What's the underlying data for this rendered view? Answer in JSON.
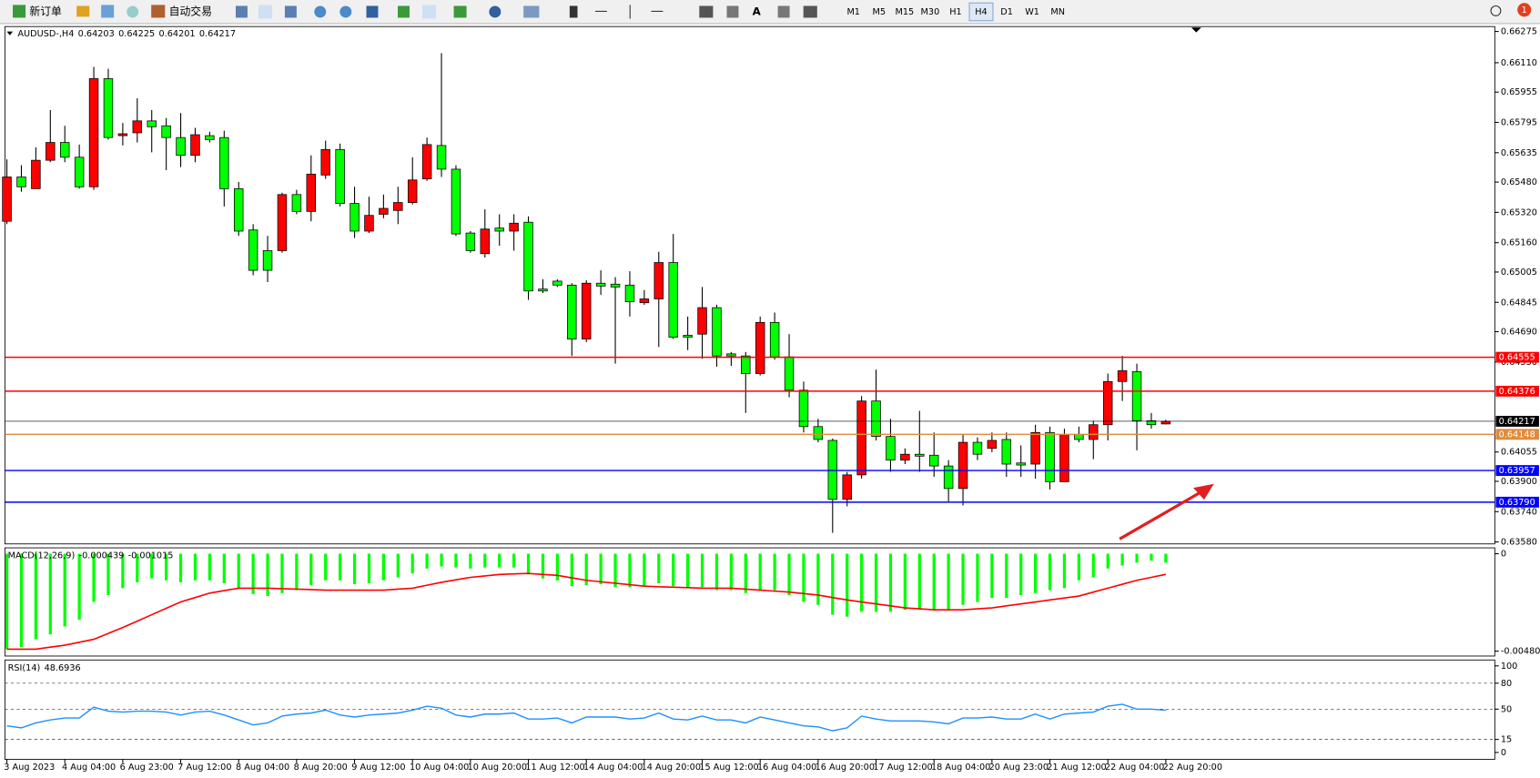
{
  "toolbar": {
    "new_order": "新订单",
    "auto_trading": "自动交易",
    "timeframes": [
      "M1",
      "M5",
      "M15",
      "M30",
      "H1",
      "H4",
      "D1",
      "W1",
      "MN"
    ],
    "active_timeframe": "H4",
    "badge": "1"
  },
  "chart_data": [
    {
      "type": "candlestick",
      "title": "AUDUSD-,H4",
      "up_color": "#ff0000",
      "down_color": "#00ff00",
      "categories": [
        "3 Aug 2023",
        null,
        null,
        null,
        "4 Aug 04:00",
        null,
        null,
        null,
        "6 Aug 23:00",
        null,
        null,
        null,
        "7 Aug 12:00",
        null,
        null,
        null,
        "8 Aug 04:00",
        null,
        null,
        null,
        "8 Aug 20:00",
        null,
        null,
        null,
        "9 Aug 12:00",
        null,
        null,
        null,
        "10 Aug 04:00",
        null,
        null,
        null,
        "10 Aug 20:00",
        null,
        null,
        null,
        "11 Aug 12:00",
        null,
        null,
        null,
        "14 Aug 04:00",
        null,
        null,
        null,
        "14 Aug 20:00",
        null,
        null,
        null,
        "15 Aug 12:00",
        null,
        null,
        null,
        "16 Aug 04:00",
        null,
        null,
        null,
        "16 Aug 20:00",
        null,
        null,
        null,
        "17 Aug 12:00",
        null,
        null,
        null,
        "18 Aug 04:00",
        null,
        null,
        null,
        "20 Aug 23:00",
        null,
        null,
        null,
        "21 Aug 12:00",
        null,
        null,
        null,
        "22 Aug 04:00",
        null,
        null,
        null,
        "22 Aug 20:00"
      ],
      "open": [
        0.65273,
        0.65507,
        0.65445,
        0.65595,
        0.65689,
        0.65611,
        0.65455,
        0.66026,
        0.65725,
        0.6574,
        0.65803,
        0.65777,
        0.65715,
        0.65621,
        0.65725,
        0.65715,
        0.65445,
        0.65227,
        0.65118,
        0.65118,
        0.65414,
        0.65325,
        0.65517,
        0.65652,
        0.65367,
        0.65221,
        0.6531,
        0.6533,
        0.65372,
        0.65497,
        0.65673,
        0.65548,
        0.65211,
        0.65102,
        0.65237,
        0.65221,
        0.65268,
        0.64915,
        0.64957,
        0.64936,
        0.64651,
        0.64946,
        0.64941,
        0.64936,
        0.64843,
        0.64863,
        0.65055,
        0.64671,
        0.64677,
        0.64817,
        0.64573,
        0.64562,
        0.64469,
        0.64739,
        0.64557,
        0.64381,
        0.64189,
        0.64116,
        0.63805,
        0.63934,
        0.64324,
        0.64137,
        0.64012,
        0.64043,
        0.64038,
        0.63981,
        0.63862,
        0.64106,
        0.64074,
        0.64121,
        0.63997,
        0.63991,
        0.64158,
        0.63898,
        0.64147,
        0.64121,
        0.64199,
        0.64427,
        0.64479,
        0.6422,
        0.64203
      ],
      "high": [
        0.656,
        0.65569,
        0.65663,
        0.6586,
        0.65777,
        0.65678,
        0.66088,
        0.66078,
        0.65792,
        0.65922,
        0.6586,
        0.65818,
        0.65844,
        0.65766,
        0.65746,
        0.65751,
        0.65481,
        0.65258,
        0.65196,
        0.65424,
        0.65439,
        0.65621,
        0.65699,
        0.65683,
        0.65455,
        0.65403,
        0.65414,
        0.65455,
        0.65611,
        0.65715,
        0.66161,
        0.65569,
        0.65221,
        0.65336,
        0.6531,
        0.6531,
        0.65299,
        0.64967,
        0.64967,
        0.64946,
        0.64962,
        0.65014,
        0.64978,
        0.65009,
        0.6491,
        0.65112,
        0.65206,
        0.6477,
        0.64926,
        0.64832,
        0.64583,
        0.64583,
        0.6477,
        0.64791,
        0.64677,
        0.64427,
        0.6423,
        0.64126,
        0.6395,
        0.6435,
        0.6449,
        0.6423,
        0.64074,
        0.64272,
        0.64158,
        0.64012,
        0.64147,
        0.64132,
        0.64158,
        0.64158,
        0.6409,
        0.64199,
        0.64189,
        0.64178,
        0.64189,
        0.6422,
        0.64469,
        0.64562,
        0.64521,
        0.64261,
        0.64225
      ],
      "low": [
        0.65258,
        0.65429,
        0.65445,
        0.65585,
        0.65585,
        0.65445,
        0.65439,
        0.65704,
        0.65673,
        0.65689,
        0.65637,
        0.65543,
        0.65559,
        0.65585,
        0.65689,
        0.65351,
        0.65196,
        0.64988,
        0.64952,
        0.65107,
        0.6531,
        0.65273,
        0.65497,
        0.65351,
        0.65185,
        0.65211,
        0.65289,
        0.65258,
        0.65362,
        0.65486,
        0.65507,
        0.65196,
        0.65107,
        0.65081,
        0.65144,
        0.65118,
        0.64858,
        0.64894,
        0.64926,
        0.64562,
        0.64635,
        0.64884,
        0.64521,
        0.6477,
        0.64832,
        0.64609,
        0.64651,
        0.64593,
        0.64547,
        0.64505,
        0.6451,
        0.64261,
        0.64459,
        0.64542,
        0.64344,
        0.64158,
        0.64106,
        0.63628,
        0.63768,
        0.63914,
        0.64116,
        0.6395,
        0.63991,
        0.6395,
        0.63924,
        0.63794,
        0.63773,
        0.64012,
        0.64054,
        0.63924,
        0.63924,
        0.63914,
        0.63857,
        0.63898,
        0.64106,
        0.64017,
        0.64116,
        0.64324,
        0.64064,
        0.64178,
        0.64201
      ],
      "close": [
        0.65507,
        0.65455,
        0.65595,
        0.65689,
        0.65611,
        0.65455,
        0.66026,
        0.65715,
        0.65735,
        0.65803,
        0.65772,
        0.65715,
        0.65621,
        0.6573,
        0.65704,
        0.65445,
        0.65221,
        0.65014,
        0.65014,
        0.65414,
        0.65325,
        0.65522,
        0.65652,
        0.65367,
        0.65221,
        0.65304,
        0.65341,
        0.65372,
        0.65491,
        0.65678,
        0.65548,
        0.65206,
        0.65118,
        0.65232,
        0.65221,
        0.65263,
        0.64905,
        0.64905,
        0.64936,
        0.64651,
        0.64946,
        0.64931,
        0.64926,
        0.64848,
        0.64863,
        0.65055,
        0.64661,
        0.64661,
        0.64817,
        0.64562,
        0.64562,
        0.64469,
        0.64739,
        0.64557,
        0.64381,
        0.64189,
        0.64121,
        0.63805,
        0.63934,
        0.64324,
        0.64137,
        0.64012,
        0.64043,
        0.64033,
        0.63981,
        0.63862,
        0.64106,
        0.64043,
        0.64116,
        0.63991,
        0.63986,
        0.64158,
        0.63898,
        0.64147,
        0.64121,
        0.64199,
        0.64427,
        0.64484,
        0.6422,
        0.64199,
        0.64217
      ],
      "ylim": [
        0.6358,
        0.66275
      ],
      "yticks": [
        0.66275,
        {
          "value": 0.6611,
          "label": "0.66110"
        },
        0.65955,
        0.65795,
        0.65635,
        {
          "value": 0.6548,
          "label": "0.65480"
        },
        {
          "value": 0.6532,
          "label": "0.65320"
        },
        {
          "value": 0.6516,
          "label": "0.65160"
        },
        0.65005,
        0.64845,
        {
          "value": 0.6469,
          "label": "0.64690"
        },
        {
          "value": 0.6453,
          "label": "0.64530"
        },
        0.64055,
        {
          "value": 0.639,
          "label": "0.63900"
        },
        {
          "value": 0.6374,
          "label": "0.63740"
        },
        {
          "value": 0.6358,
          "label": "0.63580"
        }
      ],
      "price_line_color": "#000000",
      "levels": {
        "values": [
          0.64555,
          0.64376,
          0.64148,
          0.63957,
          0.6379
        ],
        "value_labels": [
          "0.64555",
          "0.64376",
          "0.64148",
          "0.63957",
          "0.63790"
        ],
        "colors": [
          "#ff0000",
          "#ff0000",
          "#e08a3c",
          "#0000ff",
          "#0000ff"
        ]
      }
    },
    {
      "type": "macd",
      "title": "MACD(12,26,9)",
      "series": [
        {
          "color": "#00ff00",
          "values": [
            -0.004705,
            -0.004608,
            -0.00422,
            -0.003977,
            -0.003589,
            -0.00325,
            -0.002377,
            -0.002037,
            -0.001698,
            -0.001407,
            -0.001213,
            -0.00131,
            -0.001407,
            -0.00131,
            -0.00131,
            -0.001455,
            -0.001698,
            -0.001989,
            -0.002086,
            -0.00194,
            -0.001795,
            -0.001552,
            -0.00131,
            -0.00131,
            -0.001504,
            -0.001455,
            -0.00131,
            -0.001164,
            -0.00097,
            -0.000728,
            -0.000631,
            -0.000679,
            -0.000728,
            -0.000679,
            -0.000679,
            -0.000679,
            -0.001019,
            -0.001213,
            -0.00131,
            -0.001601,
            -0.001552,
            -0.001504,
            -0.001649,
            -0.001649,
            -0.001601,
            -0.001455,
            -0.001601,
            -0.001698,
            -0.001649,
            -0.001795,
            -0.001795,
            -0.00194,
            -0.001795,
            -0.001795,
            -0.002037,
            -0.002377,
            -0.002522,
            -0.003007,
            -0.003104,
            -0.002862,
            -0.002862,
            -0.002862,
            -0.002765,
            -0.002765,
            -0.002765,
            -0.002765,
            -0.002522,
            -0.002377,
            -0.002183,
            -0.002183,
            -0.002037,
            -0.00194,
            -0.001795,
            -0.001698,
            -0.00131,
            -0.001164,
            -0.000728,
            -0.000582,
            -0.000437,
            -0.00034,
            -0.000439
          ]
        },
        {
          "color": "#ff0000",
          "values": [
            -0.004705,
            -0.004705,
            -0.004705,
            -0.004608,
            -0.004511,
            -0.004365,
            -0.00422,
            -0.003929,
            -0.003638,
            -0.003323,
            -0.003007,
            -0.002692,
            -0.002377,
            -0.002159,
            -0.00194,
            -0.001819,
            -0.001698,
            -0.001698,
            -0.001698,
            -0.001722,
            -0.001746,
            -0.00177,
            -0.001795,
            -0.001795,
            -0.001795,
            -0.001795,
            -0.001795,
            -0.001746,
            -0.001698,
            -0.001552,
            -0.001407,
            -0.001286,
            -0.001164,
            -0.001092,
            -0.001019,
            -0.000995,
            -0.00097,
            -0.001019,
            -0.001067,
            -0.001189,
            -0.00131,
            -0.001383,
            -0.001455,
            -0.001528,
            -0.001601,
            -0.001625,
            -0.001649,
            -0.001674,
            -0.001698,
            -0.001698,
            -0.001698,
            -0.001746,
            -0.001795,
            -0.001843,
            -0.001892,
            -0.001965,
            -0.002037,
            -0.002159,
            -0.00228,
            -0.002377,
            -0.002474,
            -0.002571,
            -0.002668,
            -0.002716,
            -0.002765,
            -0.002765,
            -0.002765,
            -0.002716,
            -0.002668,
            -0.002571,
            -0.002474,
            -0.002377,
            -0.00228,
            -0.002183,
            -0.002086,
            -0.001892,
            -0.001698,
            -0.001504,
            -0.00131,
            -0.001164,
            -0.001015
          ]
        }
      ],
      "ylim": [
        -0.004802,
        0
      ],
      "yticks": [
        0,
        -0.004802
      ]
    },
    {
      "type": "line",
      "title": "RSI(14)",
      "color": "#1e90ff",
      "grid": true,
      "values": [
        30.7,
        28.4,
        34.1,
        37.5,
        39.8,
        39.8,
        52.3,
        47.7,
        46.6,
        47.7,
        47.7,
        46.6,
        43.2,
        46.6,
        47.7,
        43.2,
        37.5,
        31.8,
        34.1,
        42,
        44.3,
        45.5,
        48.9,
        43.2,
        40.9,
        43.2,
        44.3,
        45.5,
        48.9,
        53.4,
        51.1,
        43.2,
        40.9,
        44.3,
        44.3,
        45.5,
        38.6,
        38.6,
        39.8,
        34.1,
        40.9,
        40.9,
        40.9,
        38.6,
        39.8,
        45.5,
        38.6,
        37.5,
        42,
        37.5,
        37.5,
        34.1,
        40.9,
        37.5,
        34.1,
        30.7,
        29.5,
        25,
        28.4,
        42,
        38.6,
        36.4,
        36.4,
        36.4,
        35.2,
        33,
        39.8,
        39.8,
        40.9,
        38.6,
        38.6,
        44.3,
        38.6,
        44.3,
        45.5,
        46.6,
        53.4,
        55.7,
        50,
        50,
        48.6936
      ],
      "ylim": [
        0,
        100
      ],
      "yticks": [
        100,
        80,
        50,
        15,
        0
      ]
    }
  ]
}
